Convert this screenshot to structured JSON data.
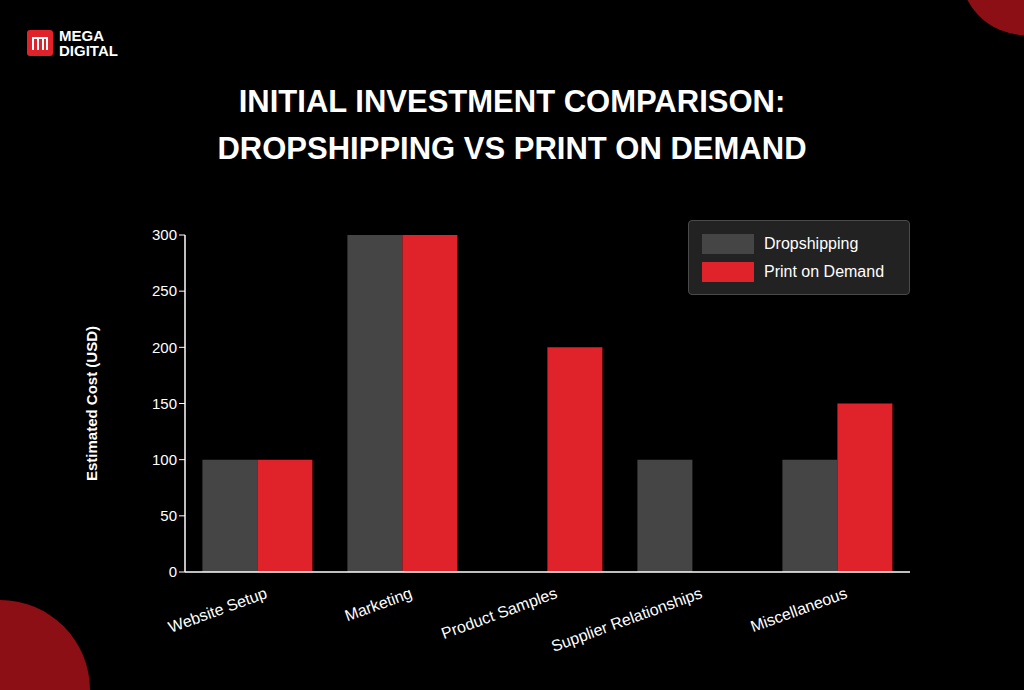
{
  "logo": [
    "MEGA",
    "DIGITAL"
  ],
  "chart_data": {
    "type": "bar",
    "title": "INITIAL INVESTMENT COMPARISON: DROPSHIPPING VS PRINT ON DEMAND",
    "y_label": "Estimated Cost (USD)",
    "categories": [
      "Website Setup",
      "Marketing",
      "Product Samples",
      "Supplier Relationships",
      "Miscellaneous"
    ],
    "series": [
      {
        "name": "Dropshipping",
        "color": "#454545",
        "values": [
          100,
          300,
          0,
          100,
          100
        ]
      },
      {
        "name": "Print on Demand",
        "color": "#e0222a",
        "values": [
          100,
          300,
          200,
          0,
          150
        ]
      }
    ],
    "ylim": [
      0,
      300
    ],
    "yticks": [
      0,
      50,
      100,
      150,
      200,
      250,
      300
    ],
    "grid": false,
    "legend": "upper right"
  }
}
